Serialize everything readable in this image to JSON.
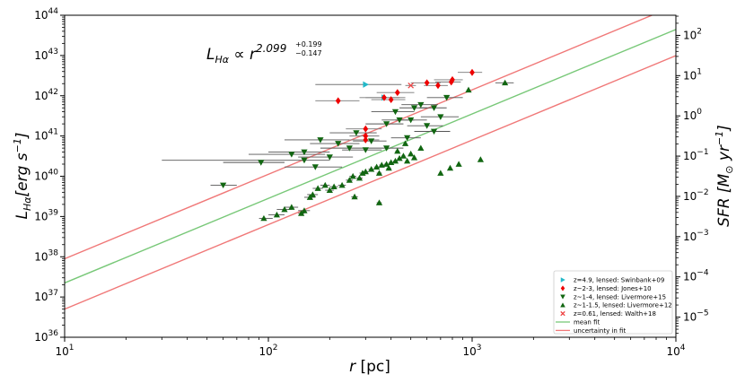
{
  "chart_data": {
    "type": "scatter",
    "title": "",
    "annotation": {
      "base": "L",
      "sub": "Hα",
      "rel": " ∝ r",
      "exp": "2.099",
      "upper": "+0.199",
      "lower": "−0.147"
    },
    "xlabel": {
      "main": "r",
      "unit": " [pc]"
    },
    "ylabel_left": {
      "base": "L",
      "sub": "Hα",
      "unit": "[erg s",
      "exp": "−1",
      "close": "]"
    },
    "ylabel_right": {
      "base": "SFR [M",
      "sun": "⊙",
      "unit": " yr",
      "exp": "−1",
      "close": "]"
    },
    "x_scale": "log",
    "y_scale": "log",
    "xlim": [
      10,
      10000
    ],
    "ylim": [
      1e+36,
      1e+44
    ],
    "ylim_right_log": [
      -5.5,
      2.5
    ],
    "x_ticks": [
      {
        "base": "10",
        "exp": "1"
      },
      {
        "base": "10",
        "exp": "2"
      },
      {
        "base": "10",
        "exp": "3"
      },
      {
        "base": "10",
        "exp": "4"
      }
    ],
    "y_ticks": [
      {
        "base": "10",
        "exp": "36"
      },
      {
        "base": "10",
        "exp": "37"
      },
      {
        "base": "10",
        "exp": "38"
      },
      {
        "base": "10",
        "exp": "39"
      },
      {
        "base": "10",
        "exp": "40"
      },
      {
        "base": "10",
        "exp": "41"
      },
      {
        "base": "10",
        "exp": "42"
      },
      {
        "base": "10",
        "exp": "43"
      },
      {
        "base": "10",
        "exp": "44"
      }
    ],
    "y2_ticks": [
      {
        "base": "10",
        "exp": "−5"
      },
      {
        "base": "10",
        "exp": "−4"
      },
      {
        "base": "10",
        "exp": "−3"
      },
      {
        "base": "10",
        "exp": "−2"
      },
      {
        "base": "10",
        "exp": "−1"
      },
      {
        "base": "10",
        "exp": "0"
      },
      {
        "base": "10",
        "exp": "1"
      },
      {
        "base": "10",
        "exp": "2"
      }
    ],
    "fit_lines": [
      {
        "name": "mean fit",
        "color": "#78c878",
        "slope": 2.099,
        "logL_at_logr1": 37.35
      },
      {
        "name": "uncertainty in fit",
        "color": "#f07878",
        "slope": 2.099,
        "logL_at_logr1": 37.95
      },
      {
        "name": "uncertainty in fit",
        "color": "#f07878",
        "slope": 2.099,
        "logL_at_logr1": 36.7
      }
    ],
    "legend": [
      {
        "label": "z=4.9, lensed: Swinbank+09",
        "marker": "tri-right",
        "color": "#22b8c8"
      },
      {
        "label": "z~2-3, lensed: Jones+10",
        "marker": "diamond",
        "color": "#ee0000"
      },
      {
        "label": "z~1-4, lensed: Livermore+15",
        "marker": "tri-down",
        "color": "#116611"
      },
      {
        "label": "z~1-1.5, lensed: Livermore+12",
        "marker": "tri-up",
        "color": "#116611"
      },
      {
        "label": "z=0.61, lensed: Walth+18",
        "marker": "x",
        "color": "#ee4444"
      },
      {
        "label": "mean fit",
        "marker": "line",
        "color": "#78c878"
      },
      {
        "label": "uncertainty in fit",
        "marker": "line",
        "color": "#f07878"
      }
    ],
    "series": [
      {
        "name": "z=4.9, lensed: Swinbank+09",
        "marker": "tri-right",
        "color": "#22b8c8",
        "points": [
          {
            "r": 300,
            "L": 1.9e+42,
            "rlo": 170,
            "rhi": 450
          },
          {
            "r": 370,
            "L": 9e+41,
            "rlo": 280,
            "rhi": 470
          }
        ]
      },
      {
        "name": "z~2-3, lensed: Jones+10",
        "marker": "diamond",
        "color": "#ee0000",
        "points": [
          {
            "r": 1000,
            "L": 3.8e+42,
            "rlo": 850,
            "rhi": 1120
          },
          {
            "r": 800,
            "L": 2.5e+42,
            "rlo": 650,
            "rhi": 900
          },
          {
            "r": 790,
            "L": 2.2e+42,
            "rlo": 660,
            "rhi": 880
          },
          {
            "r": 600,
            "L": 2.1e+42,
            "rlo": 500,
            "rhi": 700
          },
          {
            "r": 680,
            "L": 1.8e+42,
            "rlo": 580,
            "rhi": 760
          },
          {
            "r": 430,
            "L": 1.2e+42,
            "rlo": 340,
            "rhi": 520
          },
          {
            "r": 370,
            "L": 9e+41,
            "rlo": 300,
            "rhi": 440
          },
          {
            "r": 400,
            "L": 8e+41,
            "rlo": 320,
            "rhi": 470
          },
          {
            "r": 220,
            "L": 7.5e+41,
            "rlo": 170,
            "rhi": 280
          },
          {
            "r": 300,
            "L": 1.5e+41,
            "rlo": 240,
            "rhi": 360
          },
          {
            "r": 300,
            "L": 1e+41,
            "rlo": 250,
            "rhi": 350
          },
          {
            "r": 300,
            "L": 8e+40,
            "rlo": 250,
            "rhi": 350
          }
        ]
      },
      {
        "name": "z~1-4, lensed: Livermore+15",
        "marker": "tri-down",
        "color": "#116611",
        "points": [
          {
            "r": 60,
            "L": 6e+39,
            "rlo": 52,
            "rhi": 70
          },
          {
            "r": 92,
            "L": 2.2e+40,
            "rlo": 60,
            "rhi": 120
          },
          {
            "r": 130,
            "L": 3.5e+40,
            "rlo": 80,
            "rhi": 190
          },
          {
            "r": 150,
            "L": 2.5e+40,
            "rlo": 30,
            "rhi": 200
          },
          {
            "r": 170,
            "L": 1.7e+40,
            "rlo": 120,
            "rhi": 230
          },
          {
            "r": 150,
            "L": 4e+40,
            "rlo": 100,
            "rhi": 200
          },
          {
            "r": 200,
            "L": 3e+40,
            "rlo": 140,
            "rhi": 260
          },
          {
            "r": 250,
            "L": 5e+40,
            "rlo": 180,
            "rhi": 310
          },
          {
            "r": 220,
            "L": 6.5e+40,
            "rlo": 160,
            "rhi": 280
          },
          {
            "r": 180,
            "L": 8e+40,
            "rlo": 120,
            "rhi": 250
          },
          {
            "r": 300,
            "L": 4.5e+40,
            "rlo": 230,
            "rhi": 360
          },
          {
            "r": 320,
            "L": 7.5e+40,
            "rlo": 260,
            "rhi": 380
          },
          {
            "r": 380,
            "L": 2e+41,
            "rlo": 300,
            "rhi": 460
          },
          {
            "r": 420,
            "L": 4e+41,
            "rlo": 320,
            "rhi": 520
          },
          {
            "r": 440,
            "L": 2.5e+41,
            "rlo": 360,
            "rhi": 520
          },
          {
            "r": 500,
            "L": 2.5e+41,
            "rlo": 420,
            "rhi": 600
          },
          {
            "r": 520,
            "L": 5e+41,
            "rlo": 440,
            "rhi": 600
          },
          {
            "r": 600,
            "L": 1.8e+41,
            "rlo": 480,
            "rhi": 720
          },
          {
            "r": 650,
            "L": 1.3e+41,
            "rlo": 520,
            "rhi": 780
          },
          {
            "r": 700,
            "L": 3e+41,
            "rlo": 560,
            "rhi": 860
          },
          {
            "r": 750,
            "L": 9e+41,
            "rlo": 600,
            "rhi": 900
          },
          {
            "r": 560,
            "L": 6e+41,
            "rlo": 450,
            "rhi": 680
          },
          {
            "r": 650,
            "L": 5e+41,
            "rlo": 550,
            "rhi": 750
          },
          {
            "r": 480,
            "L": 9e+40,
            "rlo": 400,
            "rhi": 560
          },
          {
            "r": 380,
            "L": 5e+40,
            "rlo": 300,
            "rhi": 460
          },
          {
            "r": 270,
            "L": 1.2e+41,
            "rlo": 200,
            "rhi": 340
          }
        ]
      },
      {
        "name": "z~1-1.5, lensed: Livermore+12",
        "marker": "tri-up",
        "color": "#116611",
        "points": [
          {
            "r": 95,
            "L": 9e+38,
            "rlo": 90,
            "rhi": 105
          },
          {
            "r": 110,
            "L": 1.1e+39,
            "rlo": 100,
            "rhi": 120
          },
          {
            "r": 120,
            "L": 1.5e+39,
            "rlo": 110,
            "rhi": 130
          },
          {
            "r": 130,
            "L": 1.7e+39,
            "rlo": 120,
            "rhi": 140
          },
          {
            "r": 145,
            "L": 1.2e+39,
            "rlo": 140,
            "rhi": 150
          },
          {
            "r": 150,
            "L": 1.4e+39,
            "rlo": 140,
            "rhi": 160
          },
          {
            "r": 160,
            "L": 3e+39,
            "rlo": 150,
            "rhi": 170
          },
          {
            "r": 165,
            "L": 3.5e+39,
            "rlo": 155,
            "rhi": 175
          },
          {
            "r": 175,
            "L": 5e+39,
            "rlo": 165,
            "rhi": 185
          },
          {
            "r": 190,
            "L": 6e+39,
            "rlo": 180,
            "rhi": 200
          },
          {
            "r": 200,
            "L": 4.5e+39,
            "rlo": 190,
            "rhi": 210
          },
          {
            "r": 210,
            "L": 5.5e+39,
            "rlo": 200,
            "rhi": 220
          },
          {
            "r": 230,
            "L": 6e+39,
            "rlo": 220,
            "rhi": 240
          },
          {
            "r": 250,
            "L": 8e+39,
            "rlo": 240,
            "rhi": 260
          },
          {
            "r": 260,
            "L": 1e+40,
            "rlo": 250,
            "rhi": 270
          },
          {
            "r": 280,
            "L": 9e+39,
            "rlo": 270,
            "rhi": 290
          },
          {
            "r": 290,
            "L": 1.2e+40,
            "rlo": 280,
            "rhi": 300
          },
          {
            "r": 300,
            "L": 1.3e+40,
            "rlo": 290,
            "rhi": 310
          },
          {
            "r": 320,
            "L": 1.5e+40,
            "rlo": 310,
            "rhi": 330
          },
          {
            "r": 340,
            "L": 1.7e+40,
            "rlo": 330,
            "rhi": 350
          },
          {
            "r": 350,
            "L": 1.2e+40,
            "rlo": 340,
            "rhi": 360
          },
          {
            "r": 360,
            "L": 1.9e+40,
            "rlo": 350,
            "rhi": 370
          },
          {
            "r": 380,
            "L": 2e+40,
            "rlo": 370,
            "rhi": 390
          },
          {
            "r": 390,
            "L": 1.6e+40,
            "rlo": 380,
            "rhi": 400
          },
          {
            "r": 400,
            "L": 2.2e+40,
            "rlo": 390,
            "rhi": 410
          },
          {
            "r": 420,
            "L": 2.4e+40,
            "rlo": 410,
            "rhi": 430
          },
          {
            "r": 440,
            "L": 2.8e+40,
            "rlo": 430,
            "rhi": 450
          },
          {
            "r": 460,
            "L": 3.2e+40,
            "rlo": 450,
            "rhi": 470
          },
          {
            "r": 480,
            "L": 2.4e+40,
            "rlo": 470,
            "rhi": 490
          },
          {
            "r": 500,
            "L": 3.6e+40,
            "rlo": 490,
            "rhi": 510
          },
          {
            "r": 520,
            "L": 2.9e+40,
            "rlo": 510,
            "rhi": 530
          },
          {
            "r": 560,
            "L": 5e+40,
            "rlo": 550,
            "rhi": 570
          },
          {
            "r": 700,
            "L": 1.2e+40,
            "rlo": 690,
            "rhi": 710
          },
          {
            "r": 780,
            "L": 1.6e+40,
            "rlo": 770,
            "rhi": 790
          },
          {
            "r": 860,
            "L": 2e+40,
            "rlo": 850,
            "rhi": 870
          },
          {
            "r": 1100,
            "L": 2.6e+40,
            "rlo": 1080,
            "rhi": 1120
          },
          {
            "r": 1450,
            "L": 2.1e+42,
            "rlo": 1300,
            "rhi": 1600
          },
          {
            "r": 960,
            "L": 1.4e+42,
            "rlo": 940,
            "rhi": 980
          },
          {
            "r": 350,
            "L": 2.2e+39,
            "rlo": 340,
            "rhi": 360
          },
          {
            "r": 265,
            "L": 3.1e+39,
            "rlo": 255,
            "rhi": 275
          },
          {
            "r": 470,
            "L": 6.5e+40,
            "rlo": 460,
            "rhi": 480
          },
          {
            "r": 430,
            "L": 4.2e+40,
            "rlo": 420,
            "rhi": 440
          }
        ]
      },
      {
        "name": "z=0.61, lensed: Walth+18",
        "marker": "x",
        "color": "#ee4444",
        "points": [
          {
            "r": 500,
            "L": 1.8e+42,
            "rlo": 470,
            "rhi": 530
          }
        ]
      }
    ]
  }
}
